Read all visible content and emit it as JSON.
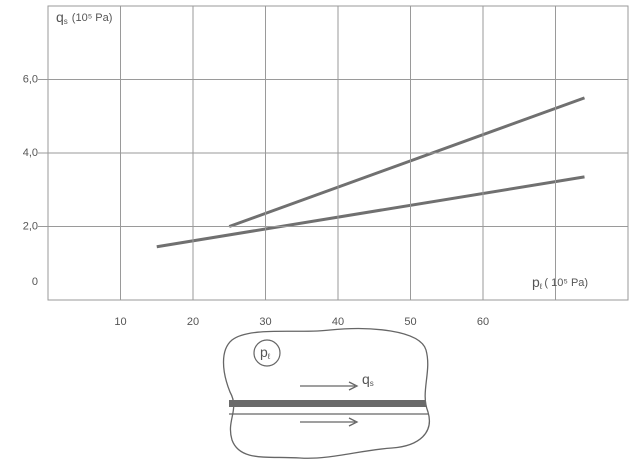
{
  "chart_data": {
    "type": "line",
    "y_label": {
      "symbol": "q",
      "subscript": "s",
      "unit": "(10⁵ Pa)"
    },
    "x_label": {
      "symbol": "p",
      "subscript": "ℓ",
      "unit": "( 10⁵ Pa)"
    },
    "series": [
      {
        "color": "#707070",
        "x": [
          25,
          74
        ],
        "values": [
          2.0,
          5.5
        ]
      },
      {
        "color": "#707070",
        "x": [
          15,
          74
        ],
        "values": [
          1.45,
          3.35
        ]
      }
    ],
    "xlim": [
      0,
      80
    ],
    "ylim": [
      0,
      8
    ],
    "xticks": [
      10,
      20,
      30,
      40,
      50,
      60
    ],
    "x_grid_lines": [
      10,
      20,
      30,
      40,
      50,
      60,
      70
    ],
    "yticks": [
      0,
      {
        "value": 2,
        "label": "2,0"
      },
      {
        "value": 4,
        "label": "4,0"
      },
      {
        "value": 6,
        "label": "6,0"
      }
    ],
    "grid": true
  },
  "diagram": {
    "pressure": {
      "symbol": "p",
      "subscript": "ℓ"
    },
    "shear": {
      "symbol": "q",
      "subscript": "s"
    }
  }
}
